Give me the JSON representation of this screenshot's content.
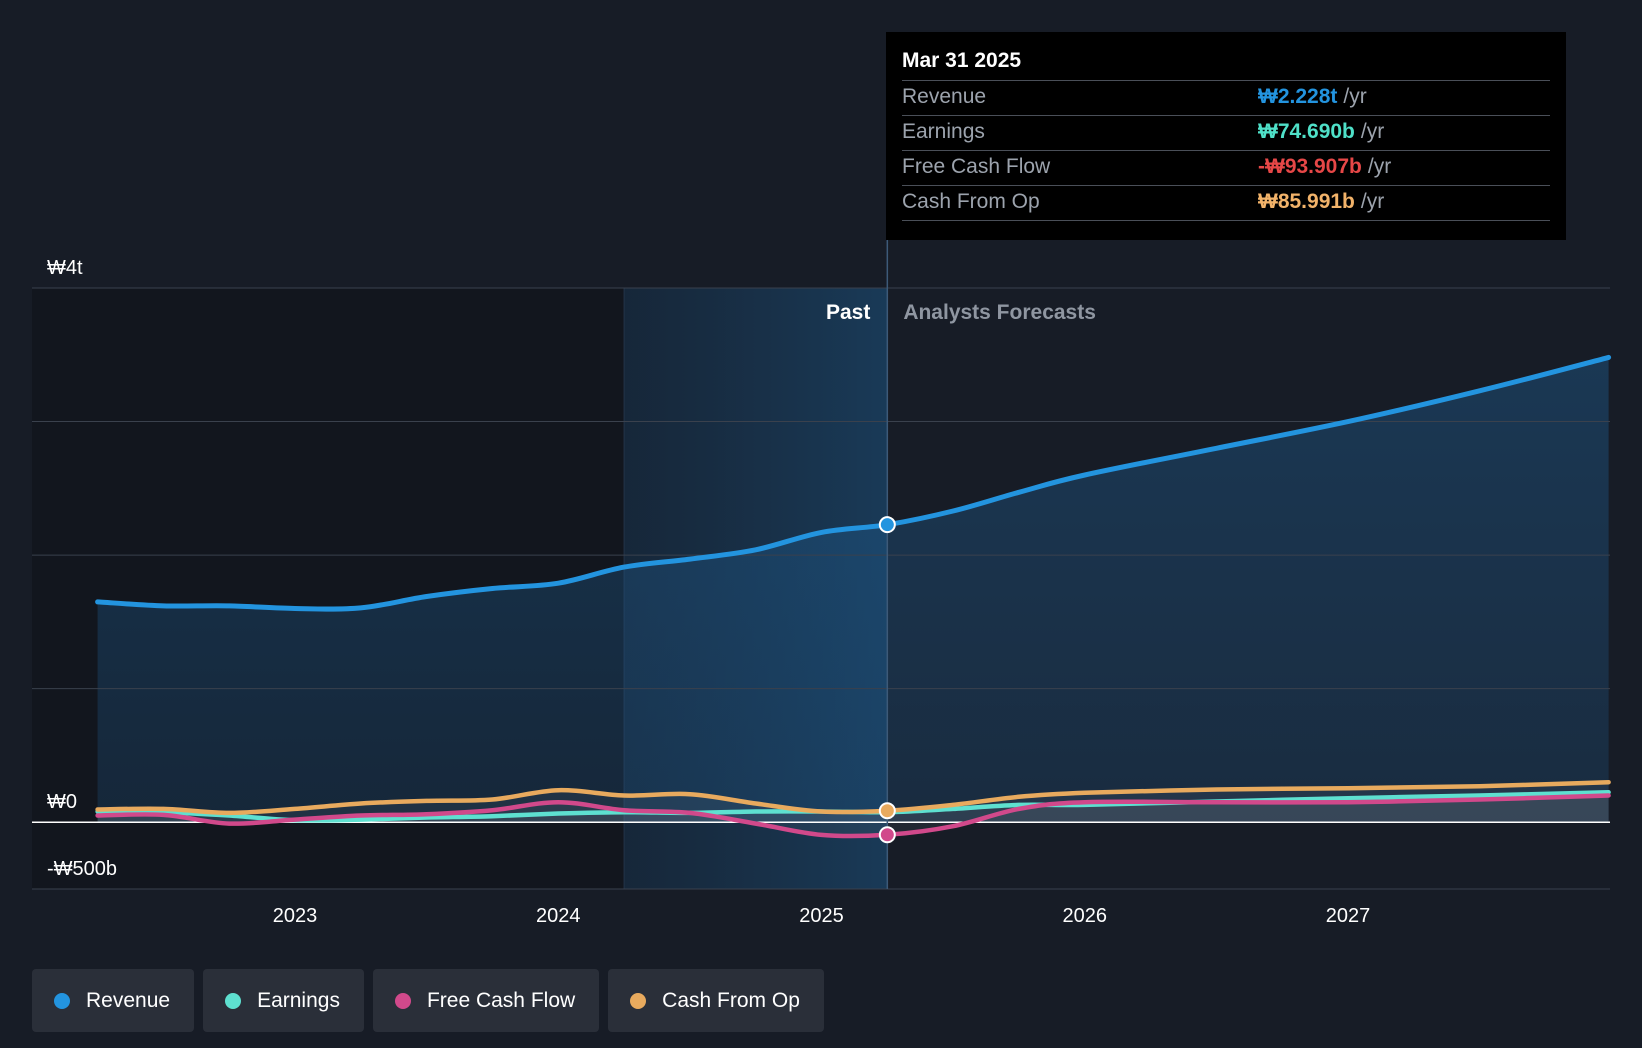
{
  "tooltip": {
    "date": "Mar 31 2025",
    "rows": [
      {
        "label": "Revenue",
        "value": "₩2.228t",
        "unit": "/yr",
        "color": "#2394df"
      },
      {
        "label": "Earnings",
        "value": "₩74.690b",
        "unit": "/yr",
        "color": "#4fe0c8"
      },
      {
        "label": "Free Cash Flow",
        "value": "-₩93.907b",
        "unit": "/yr",
        "color": "#e64747"
      },
      {
        "label": "Cash From Op",
        "value": "₩85.991b",
        "unit": "/yr",
        "color": "#f2b36a"
      }
    ]
  },
  "legend": [
    {
      "label": "Revenue",
      "color": "#2394df"
    },
    {
      "label": "Earnings",
      "color": "#5ee0d0"
    },
    {
      "label": "Free Cash Flow",
      "color": "#d1498b"
    },
    {
      "label": "Cash From Op",
      "color": "#e8aa5e"
    }
  ],
  "chart_data": {
    "type": "line",
    "region_labels": {
      "past": "Past",
      "forecast": "Analysts Forecasts"
    },
    "y_tick_labels": [
      {
        "value": 4000,
        "label": "₩4t"
      },
      {
        "value": 0,
        "label": "₩0"
      },
      {
        "value": -500,
        "label": "-₩500b"
      }
    ],
    "x_tick_labels": [
      {
        "value": 2023,
        "label": "2023"
      },
      {
        "value": 2024,
        "label": "2024"
      },
      {
        "value": 2025,
        "label": "2025"
      },
      {
        "value": 2026,
        "label": "2026"
      },
      {
        "value": 2027,
        "label": "2027"
      }
    ],
    "ylim": [
      -500,
      4000
    ],
    "xlim": [
      2022.0,
      2028.0
    ],
    "y_gridlines": [
      -500,
      0,
      1000,
      2000,
      3000,
      4000
    ],
    "past_end": 2025.25,
    "highlight_start": 2024.25,
    "unit": "billion KRW",
    "series": [
      {
        "name": "Revenue",
        "color": "#2394df",
        "points": [
          [
            2022.25,
            1650
          ],
          [
            2022.5,
            1620
          ],
          [
            2022.75,
            1620
          ],
          [
            2023.0,
            1600
          ],
          [
            2023.25,
            1605
          ],
          [
            2023.5,
            1690
          ],
          [
            2023.75,
            1750
          ],
          [
            2024.0,
            1790
          ],
          [
            2024.25,
            1910
          ],
          [
            2024.5,
            1970
          ],
          [
            2024.75,
            2040
          ],
          [
            2025.0,
            2170
          ],
          [
            2025.25,
            2228
          ],
          [
            2025.5,
            2330
          ],
          [
            2025.75,
            2470
          ],
          [
            2026.0,
            2600
          ],
          [
            2026.5,
            2800
          ],
          [
            2027.0,
            3000
          ],
          [
            2027.5,
            3230
          ],
          [
            2027.99,
            3480
          ]
        ]
      },
      {
        "name": "Earnings",
        "color": "#5ee0d0",
        "points": [
          [
            2022.25,
            80
          ],
          [
            2022.5,
            75
          ],
          [
            2022.75,
            50
          ],
          [
            2023.0,
            15
          ],
          [
            2023.25,
            20
          ],
          [
            2023.5,
            35
          ],
          [
            2023.75,
            45
          ],
          [
            2024.0,
            65
          ],
          [
            2024.25,
            75
          ],
          [
            2024.5,
            70
          ],
          [
            2024.75,
            80
          ],
          [
            2025.0,
            80
          ],
          [
            2025.25,
            75
          ],
          [
            2025.5,
            100
          ],
          [
            2025.75,
            130
          ],
          [
            2026.0,
            130
          ],
          [
            2026.5,
            155
          ],
          [
            2027.0,
            180
          ],
          [
            2027.5,
            200
          ],
          [
            2027.99,
            225
          ]
        ]
      },
      {
        "name": "Free Cash Flow",
        "color": "#d1498b",
        "points": [
          [
            2022.25,
            50
          ],
          [
            2022.5,
            55
          ],
          [
            2022.75,
            -10
          ],
          [
            2023.0,
            20
          ],
          [
            2023.25,
            50
          ],
          [
            2023.5,
            60
          ],
          [
            2023.75,
            90
          ],
          [
            2024.0,
            150
          ],
          [
            2024.25,
            90
          ],
          [
            2024.5,
            70
          ],
          [
            2024.75,
            -10
          ],
          [
            2025.0,
            -95
          ],
          [
            2025.25,
            -94
          ],
          [
            2025.5,
            -30
          ],
          [
            2025.75,
            100
          ],
          [
            2026.0,
            150
          ],
          [
            2026.5,
            150
          ],
          [
            2027.0,
            150
          ],
          [
            2027.5,
            170
          ],
          [
            2027.99,
            200
          ]
        ]
      },
      {
        "name": "Cash From Op",
        "color": "#e8aa5e",
        "points": [
          [
            2022.25,
            95
          ],
          [
            2022.5,
            100
          ],
          [
            2022.75,
            70
          ],
          [
            2023.0,
            100
          ],
          [
            2023.25,
            140
          ],
          [
            2023.5,
            160
          ],
          [
            2023.75,
            170
          ],
          [
            2024.0,
            240
          ],
          [
            2024.25,
            200
          ],
          [
            2024.5,
            210
          ],
          [
            2024.75,
            140
          ],
          [
            2025.0,
            80
          ],
          [
            2025.25,
            86
          ],
          [
            2025.5,
            130
          ],
          [
            2025.75,
            190
          ],
          [
            2026.0,
            220
          ],
          [
            2026.5,
            245
          ],
          [
            2027.0,
            255
          ],
          [
            2027.5,
            270
          ],
          [
            2027.99,
            300
          ]
        ]
      }
    ]
  }
}
